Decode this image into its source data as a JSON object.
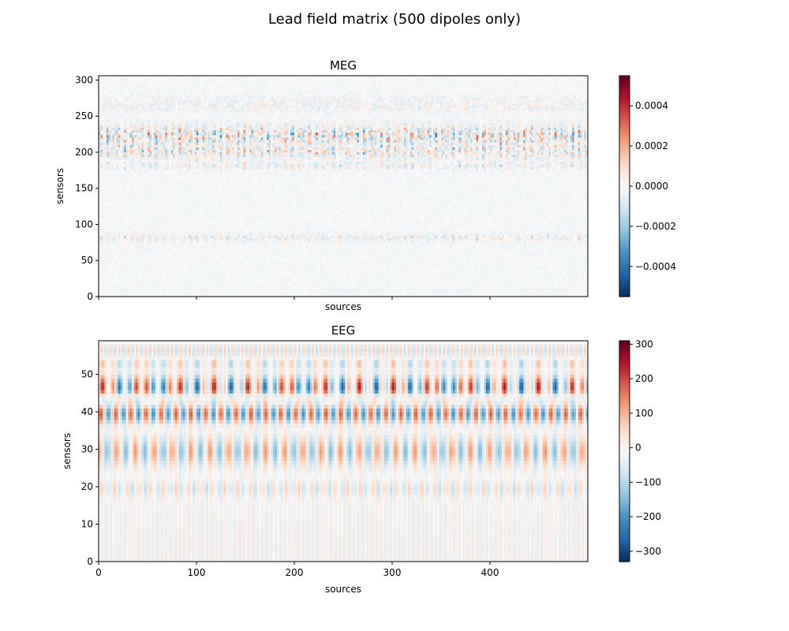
{
  "title": "Lead field matrix (500 dipoles only)",
  "chart_data": [
    {
      "type": "heatmap",
      "title": "MEG",
      "xlabel": "sources",
      "ylabel": "sensors",
      "xlim": [
        0,
        500
      ],
      "ylim": [
        0,
        306
      ],
      "x_tick_values": [
        0,
        100,
        200,
        300,
        400
      ],
      "x_tick_labels_visible": false,
      "y_ticks": [
        0,
        50,
        100,
        150,
        200,
        250,
        300
      ],
      "colormap": "RdBu_r",
      "clim": [
        -0.00055,
        0.00055
      ],
      "colorbar_ticks": [
        -0.0004,
        -0.0002,
        0.0,
        0.0002,
        0.0004
      ],
      "colorbar_labels": [
        "−0.0004",
        "−0.0002",
        "0.0000",
        "0.0002",
        "0.0004"
      ],
      "pattern_note": "values near zero; strong alternating signs in sensor rows 175-235 and a band near 75-85"
    },
    {
      "type": "heatmap",
      "title": "EEG",
      "xlabel": "sources",
      "ylabel": "sensors",
      "xlim": [
        0,
        500
      ],
      "ylim": [
        0,
        59
      ],
      "x_tick_values": [
        0,
        100,
        200,
        300,
        400
      ],
      "x_tick_labels": [
        "0",
        "100",
        "200",
        "300",
        "400"
      ],
      "y_ticks": [
        0,
        10,
        20,
        30,
        40,
        50
      ],
      "colormap": "RdBu_r",
      "clim": [
        -330,
        310
      ],
      "colorbar_ticks": [
        -300,
        -200,
        -100,
        0,
        100,
        200,
        300
      ],
      "colorbar_labels": [
        "−300",
        "−200",
        "−100",
        "0",
        "100",
        "200",
        "300"
      ],
      "pattern_note": "horizontal bands of strong alternating values around sensors 43-50, 36-41 and 25-33; weaker structure below 20"
    }
  ]
}
